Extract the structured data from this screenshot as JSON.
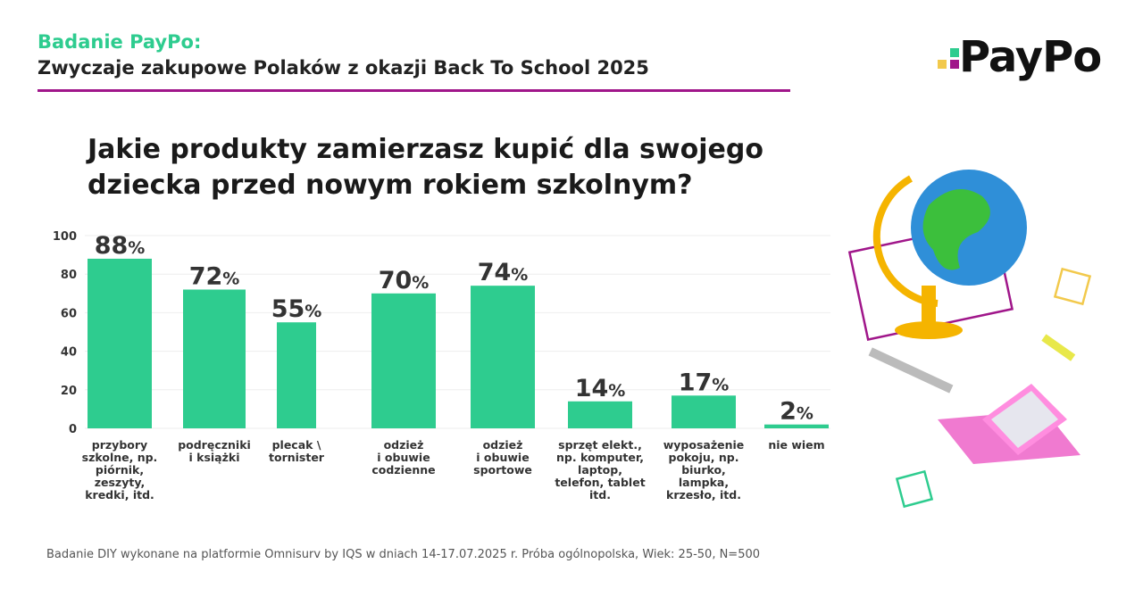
{
  "header": {
    "title": "Badanie PayPo:",
    "subtitle": "Zwyczaje zakupowe Polaków z okazji Back To School 2025"
  },
  "logo": {
    "text": "PayPo",
    "colors": [
      "#f2c94c",
      "#2ecc8f",
      "#a0168a"
    ]
  },
  "question": "Jakie produkty zamierzasz kupić dla swojego dziecka przed nowym rokiem szkolnym?",
  "footer": "Badanie DIY wykonane na platformie Omnisurv by IQS w dniach 14-17.07.2025 r.  Próba ogólnopolska, Wiek: 25-50, N=500",
  "chart_data": {
    "type": "bar",
    "categories": [
      [
        "przybory",
        "szkolne, np.",
        "piórnik,",
        "zeszyty,",
        "kredki, itd."
      ],
      [
        "podręczniki",
        "i książki"
      ],
      [
        "plecak \\",
        "tornister"
      ],
      [
        "odzież",
        "i obuwie",
        "codzienne"
      ],
      [
        "odzież",
        "i obuwie",
        "sportowe"
      ],
      [
        "sprzęt elekt.,",
        "np. komputer,",
        "laptop,",
        "telefon, tablet",
        "itd."
      ],
      [
        "wyposażenie",
        "pokoju, np.",
        "biurko,",
        "lampka,",
        "krzesło, itd."
      ],
      [
        "nie wiem"
      ]
    ],
    "values": [
      88,
      72,
      55,
      70,
      74,
      14,
      17,
      2
    ],
    "unit": "%",
    "ylim": [
      0,
      100
    ],
    "yticks": [
      0,
      20,
      40,
      60,
      80,
      100
    ],
    "grid": true,
    "bar_color": "#2ecc8f"
  }
}
